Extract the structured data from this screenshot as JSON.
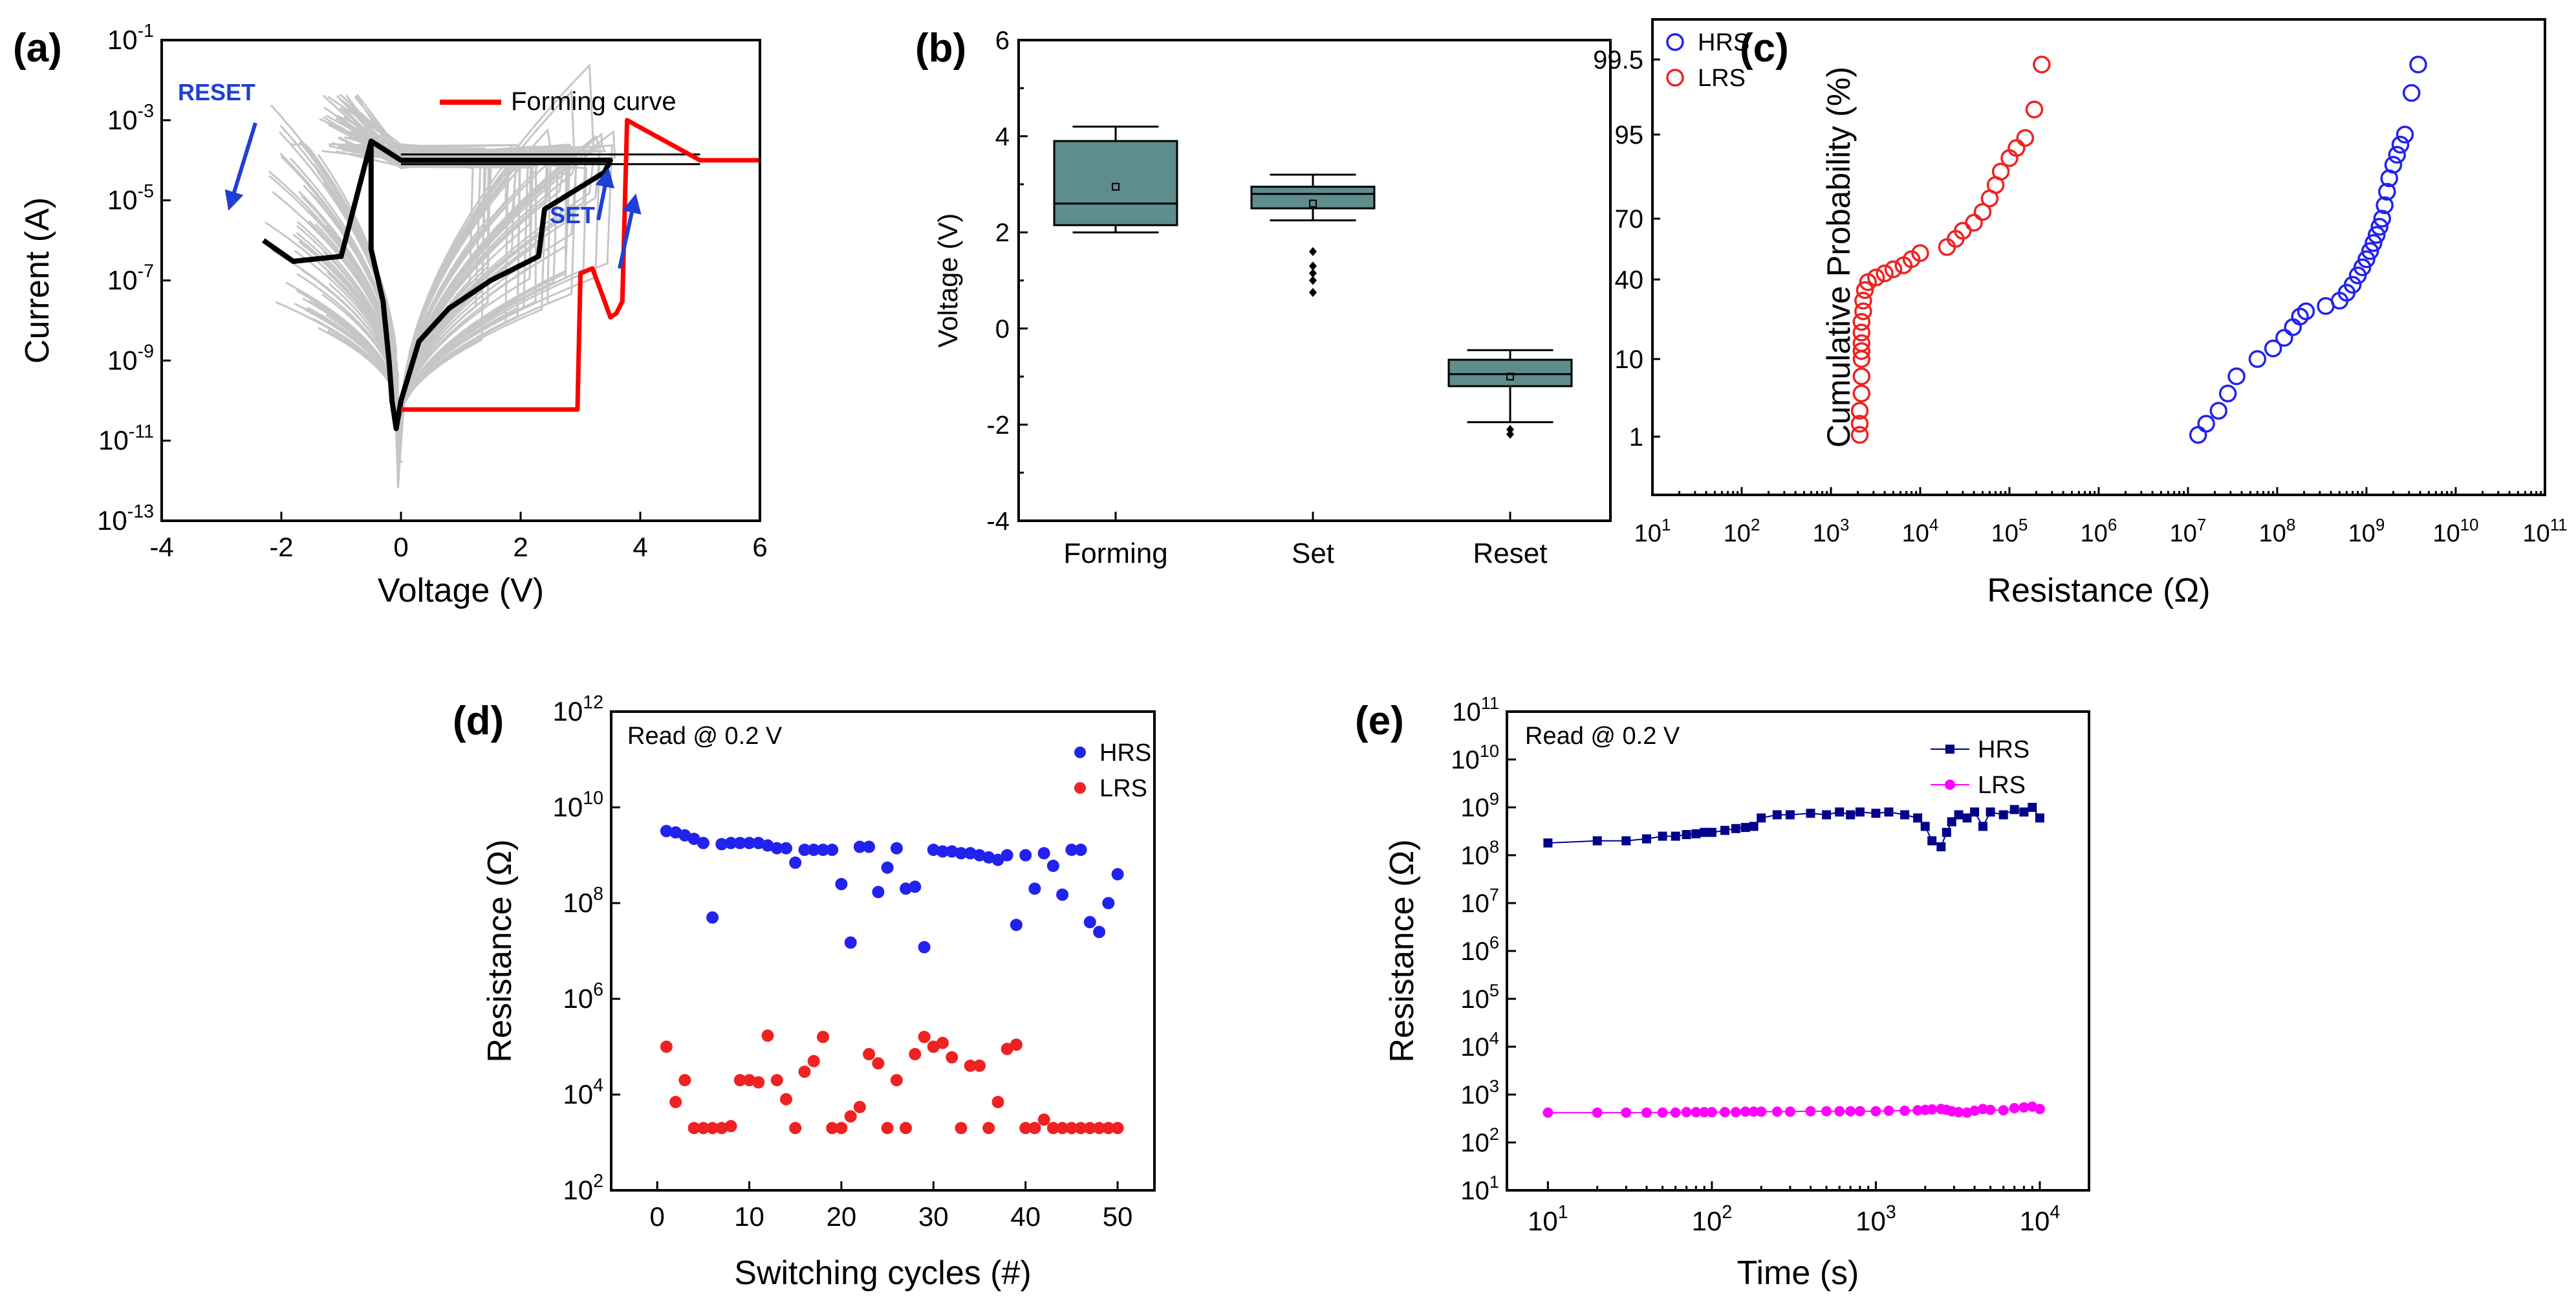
{
  "colors": {
    "gray_sweeps": "#c0c0c0",
    "black_curve": "#000000",
    "forming_red": "#ff0000",
    "arrow_blue": "#1f3fd6",
    "box_fill": "#5f8c8c",
    "hrs_blue": "#2222ee",
    "lrs_red": "#ee2222",
    "retention_hrs": "#00008b",
    "retention_lrs": "#ff00ff"
  },
  "chart_data": [
    {
      "panel": "(a)",
      "type": "line",
      "xlabel": "Voltage (V)",
      "ylabel": "Current (A)",
      "xlim": [
        -4,
        6
      ],
      "ylim_exp": [
        -13,
        -1
      ],
      "yscale": "log",
      "x_ticks": [
        "-4",
        "-2",
        "0",
        "2",
        "4",
        "6"
      ],
      "y_ticks_exp": [
        -13,
        -11,
        -9,
        -7,
        -5,
        -3,
        -1
      ],
      "legend": [
        "Forming curve"
      ],
      "annotations": [
        "RESET",
        "SET"
      ],
      "series": [
        {
          "name": "Forming curve",
          "points": [
            [
              0,
              6e-11
            ],
            [
              1.5,
              6e-11
            ],
            [
              2.95,
              6e-11
            ],
            [
              3.0,
              1.5e-07
            ],
            [
              3.2,
              2e-07
            ],
            [
              3.35,
              5e-08
            ],
            [
              3.5,
              1.2e-08
            ],
            [
              3.6,
              1.5e-08
            ],
            [
              3.7,
              3e-08
            ],
            [
              3.78,
              0.001
            ],
            [
              5,
              0.0001
            ],
            [
              6,
              0.0001
            ]
          ]
        },
        {
          "points": [
            [
              -2.3,
              1e-06
            ],
            [
              -1.8,
              3e-07
            ],
            [
              -1.0,
              4e-07
            ],
            [
              -0.5,
              0.0003
            ],
            [
              -0.5,
              6e-07
            ],
            [
              -0.3,
              3e-08
            ],
            [
              -0.2,
              1e-09
            ],
            [
              -0.15,
              1e-10
            ],
            [
              -0.08,
              2e-11
            ],
            [
              0,
              1e-10
            ],
            [
              0.3,
              3e-09
            ],
            [
              0.8,
              2e-08
            ],
            [
              1.5,
              1e-07
            ],
            [
              2.3,
              4e-07
            ],
            [
              2.4,
              6e-06
            ],
            [
              3.4,
              5e-05
            ],
            [
              3.5,
              0.0001
            ],
            [
              0,
              0.0001
            ],
            [
              -0.5,
              0.0003
            ]
          ]
        }
      ]
    },
    {
      "panel": "(b)",
      "type": "box",
      "ylabel": "Voltage (V)",
      "ylim": [
        -4,
        6
      ],
      "y_ticks": [
        "-4",
        "-2",
        "0",
        "2",
        "4",
        "6"
      ],
      "categories": [
        "Forming",
        "Set",
        "Reset"
      ],
      "boxes": [
        {
          "min": 2.0,
          "q1": 2.15,
          "median": 2.6,
          "q3": 3.9,
          "max": 4.2,
          "mean": 2.95,
          "outliers": []
        },
        {
          "min": 2.25,
          "q1": 2.5,
          "median": 2.8,
          "q3": 2.95,
          "max": 3.2,
          "mean": 2.6,
          "outliers": [
            1.6,
            1.3,
            1.15,
            1.0,
            0.75
          ]
        },
        {
          "min": -1.95,
          "q1": -1.2,
          "median": -0.95,
          "q3": -0.65,
          "max": -0.45,
          "mean": -1.0,
          "outliers": [
            -2.1,
            -2.2
          ]
        }
      ]
    },
    {
      "panel": "(c)",
      "type": "scatter",
      "xlabel": "Resistance (Ω)",
      "ylabel": "Cumulative Probability (%)",
      "xscale": "log",
      "xlim_exp": [
        1,
        11
      ],
      "x_ticks_exp": [
        1,
        2,
        3,
        4,
        5,
        6,
        7,
        8,
        9,
        10,
        11
      ],
      "y_ticks": [
        "1",
        "10",
        "40",
        "70",
        "95",
        "99.5"
      ],
      "legend": [
        "HRS",
        "LRS"
      ],
      "series": [
        {
          "name": "HRS",
          "points": [
            [
              13000000.0,
              1.2
            ],
            [
              16000000.0,
              2.5
            ],
            [
              22000000.0,
              4
            ],
            [
              28000000.0,
              6
            ],
            [
              35000000.0,
              8
            ],
            [
              60000000.0,
              10
            ],
            [
              90000000.0,
              14
            ],
            [
              120000000.0,
              18
            ],
            [
              150000000.0,
              22
            ],
            [
              180000000.0,
              26
            ],
            [
              210000000.0,
              28
            ],
            [
              350000000.0,
              30
            ],
            [
              500000000.0,
              32
            ],
            [
              600000000.0,
              35
            ],
            [
              700000000.0,
              38
            ],
            [
              800000000.0,
              42
            ],
            [
              900000000.0,
              46
            ],
            [
              1000000000.0,
              50
            ],
            [
              1100000000.0,
              54
            ],
            [
              1200000000.0,
              58
            ],
            [
              1300000000.0,
              62
            ],
            [
              1400000000.0,
              66
            ],
            [
              1500000000.0,
              70
            ],
            [
              1600000000.0,
              74
            ],
            [
              1700000000.0,
              78
            ],
            [
              1800000000.0,
              82
            ],
            [
              2000000000.0,
              86
            ],
            [
              2200000000.0,
              89
            ],
            [
              2400000000.0,
              92
            ],
            [
              2700000000.0,
              95
            ],
            [
              3200000000.0,
              97.5
            ],
            [
              3800000000.0,
              99.2
            ]
          ]
        },
        {
          "name": "LRS",
          "points": [
            [
              2100.0,
              1.2
            ],
            [
              2100.0,
              2.5
            ],
            [
              2100.0,
              4
            ],
            [
              2200.0,
              6
            ],
            [
              2200.0,
              8
            ],
            [
              2200.0,
              10
            ],
            [
              2200.0,
              13
            ],
            [
              2200.0,
              16
            ],
            [
              2200.0,
              20
            ],
            [
              2200.0,
              24
            ],
            [
              2300.0,
              28
            ],
            [
              2300.0,
              32
            ],
            [
              2400.0,
              36
            ],
            [
              2600.0,
              39
            ],
            [
              3200.0,
              41
            ],
            [
              4000.0,
              43
            ],
            [
              5000.0,
              45
            ],
            [
              6500.0,
              47
            ],
            [
              8000.0,
              50
            ],
            [
              10000.0,
              53
            ],
            [
              20000.0,
              56
            ],
            [
              25000.0,
              60
            ],
            [
              30000.0,
              64
            ],
            [
              40000.0,
              68
            ],
            [
              50000.0,
              72
            ],
            [
              60000.0,
              76
            ],
            [
              70000.0,
              80
            ],
            [
              80000.0,
              84
            ],
            [
              100000.0,
              88
            ],
            [
              120000.0,
              91
            ],
            [
              150000.0,
              94
            ],
            [
              190000.0,
              96.5
            ],
            [
              230000.0,
              99.2
            ]
          ]
        }
      ]
    },
    {
      "panel": "(d)",
      "type": "scatter",
      "xlabel": "Switching cycles (#)",
      "ylabel": "Resistance (Ω)",
      "annotation": "Read @ 0.2 V",
      "yscale": "log",
      "xlim": [
        -5,
        54
      ],
      "x_ticks": [
        "0",
        "10",
        "20",
        "30",
        "40",
        "50"
      ],
      "ylim_exp": [
        2,
        12
      ],
      "y_ticks_exp": [
        2,
        4,
        6,
        8,
        10,
        12
      ],
      "legend": [
        "HRS",
        "LRS"
      ],
      "series": [
        {
          "name": "HRS",
          "x": [
            1,
            2,
            3,
            4,
            5,
            6,
            7,
            8,
            9,
            10,
            11,
            12,
            13,
            14,
            15,
            16,
            17,
            18,
            19,
            20,
            21,
            22,
            23,
            24,
            25,
            26,
            27,
            28,
            29,
            30,
            31,
            32,
            33,
            34,
            35,
            36,
            37,
            38,
            39,
            40,
            41,
            42,
            43,
            44,
            45,
            46,
            47,
            48,
            49,
            50
          ],
          "y": [
            3200000000.0,
            3000000000.0,
            2600000000.0,
            2200000000.0,
            1800000000.0,
            50000000.0,
            1700000000.0,
            1800000000.0,
            1800000000.0,
            1800000000.0,
            1800000000.0,
            1600000000.0,
            1400000000.0,
            1400000000.0,
            700000000.0,
            1300000000.0,
            1300000000.0,
            1300000000.0,
            1300000000.0,
            250000000.0,
            15000000.0,
            1500000000.0,
            1500000000.0,
            170000000.0,
            550000000.0,
            1400000000.0,
            200000000.0,
            220000000.0,
            12000000.0,
            1300000000.0,
            1200000000.0,
            1200000000.0,
            1100000000.0,
            1100000000.0,
            1000000000.0,
            900000000.0,
            800000000.0,
            1000000000.0,
            35000000.0,
            1000000000.0,
            200000000.0,
            1100000000.0,
            600000000.0,
            150000000.0,
            1300000000.0,
            1300000000.0,
            40000000.0,
            25000000.0,
            100000000.0,
            400000000.0
          ]
        },
        {
          "name": "LRS",
          "x": [
            1,
            2,
            3,
            4,
            5,
            6,
            7,
            8,
            9,
            10,
            11,
            12,
            13,
            14,
            15,
            16,
            17,
            18,
            19,
            20,
            21,
            22,
            23,
            24,
            25,
            26,
            27,
            28,
            29,
            30,
            31,
            32,
            33,
            34,
            35,
            36,
            37,
            38,
            39,
            40,
            41,
            42,
            43,
            44,
            45,
            46,
            47,
            48,
            49,
            50
          ],
          "y": [
            100000.0,
            7000.0,
            20000.0,
            2000.0,
            2000.0,
            2000.0,
            2000.0,
            2200.0,
            20000.0,
            20000.0,
            18000.0,
            170000.0,
            20000.0,
            8000.0,
            2000.0,
            30000.0,
            50000.0,
            160000.0,
            2000.0,
            2000.0,
            3500.0,
            5500.0,
            70000.0,
            45000.0,
            2000.0,
            20000.0,
            2000.0,
            70000.0,
            160000.0,
            100000.0,
            120000.0,
            60000.0,
            2000.0,
            40000.0,
            40000.0,
            2000.0,
            7000.0,
            90000.0,
            110000.0,
            2000.0,
            2000.0,
            3000.0,
            2000.0,
            2000.0,
            2000.0,
            2000.0,
            2000.0,
            2000.0,
            2000.0,
            2000.0
          ]
        }
      ]
    },
    {
      "panel": "(e)",
      "type": "line",
      "xlabel": "Time (s)",
      "ylabel": "Resistance (Ω)",
      "annotation": "Read @ 0.2 V",
      "xscale": "log",
      "yscale": "log",
      "xlim_exp": [
        0.75,
        4.3
      ],
      "x_ticks_exp": [
        1,
        2,
        3,
        4
      ],
      "ylim_exp": [
        1,
        11
      ],
      "y_ticks_exp": [
        1,
        2,
        3,
        4,
        5,
        6,
        7,
        8,
        9,
        10,
        11
      ],
      "legend": [
        "HRS",
        "LRS"
      ],
      "series": [
        {
          "name": "HRS",
          "x": [
            10,
            20,
            30,
            40,
            50,
            60,
            70,
            80,
            90,
            100,
            120,
            140,
            160,
            180,
            200,
            250,
            300,
            400,
            500,
            600,
            700,
            800,
            1000,
            1200,
            1500,
            1800,
            2000,
            2200,
            2500,
            2700,
            2900,
            3200,
            3600,
            4000,
            4500,
            5000,
            6000,
            7000,
            8000,
            9000,
            10000
          ],
          "y": [
            180000000.0,
            200000000.0,
            200000000.0,
            220000000.0,
            250000000.0,
            250000000.0,
            270000000.0,
            280000000.0,
            300000000.0,
            300000000.0,
            330000000.0,
            360000000.0,
            380000000.0,
            400000000.0,
            600000000.0,
            700000000.0,
            700000000.0,
            750000000.0,
            700000000.0,
            800000000.0,
            700000000.0,
            800000000.0,
            750000000.0,
            800000000.0,
            700000000.0,
            600000000.0,
            400000000.0,
            200000000.0,
            150000000.0,
            300000000.0,
            500000000.0,
            700000000.0,
            600000000.0,
            800000000.0,
            400000000.0,
            800000000.0,
            700000000.0,
            900000000.0,
            800000000.0,
            1000000000.0,
            600000000.0
          ]
        },
        {
          "name": "LRS",
          "x": [
            10,
            20,
            30,
            40,
            50,
            60,
            70,
            80,
            90,
            100,
            120,
            140,
            160,
            180,
            200,
            250,
            300,
            400,
            500,
            600,
            700,
            800,
            1000,
            1200,
            1500,
            1800,
            2000,
            2200,
            2500,
            2700,
            2900,
            3200,
            3600,
            4000,
            4500,
            5000,
            6000,
            7000,
            8000,
            9000,
            10000
          ],
          "y": [
            420,
            420,
            420,
            420,
            420,
            420,
            430,
            430,
            430,
            430,
            430,
            430,
            440,
            440,
            440,
            440,
            440,
            450,
            450,
            450,
            450,
            450,
            450,
            460,
            460,
            470,
            480,
            490,
            500,
            480,
            450,
            430,
            420,
            460,
            500,
            480,
            470,
            520,
            540,
            560,
            500
          ]
        }
      ]
    }
  ]
}
